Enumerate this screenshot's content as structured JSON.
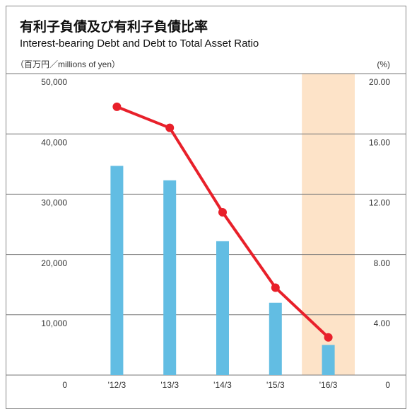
{
  "chart_data": {
    "type": "bar",
    "title": "有利子負債及び有利子負債比率",
    "subtitle": "Interest-bearing Debt and Debt to Total Asset Ratio",
    "y_label": "（百万円／millions of yen）",
    "y2_label": "(%)",
    "categories": [
      "'12/3",
      "'13/3",
      "'14/3",
      "'15/3",
      "'16/3"
    ],
    "series": [
      {
        "name": "有利子負債",
        "type": "bar",
        "axis": "y",
        "color": "#62bde3",
        "values": [
          34700,
          32300,
          22200,
          12000,
          5000
        ]
      },
      {
        "name": "有利子負債比率",
        "type": "line",
        "axis": "y2",
        "color": "#e8202a",
        "values": [
          17.8,
          16.4,
          10.8,
          5.8,
          2.5
        ]
      }
    ],
    "ylim": [
      0,
      50000
    ],
    "yticks": [
      0,
      {
        "value": 10000,
        "label": "10,000"
      },
      {
        "value": 20000,
        "label": "20,000"
      },
      {
        "value": 30000,
        "label": "30,000"
      },
      {
        "value": 40000,
        "label": "40,000"
      },
      {
        "value": 50000,
        "label": "50,000"
      }
    ],
    "y2lim": [
      0,
      20
    ],
    "y2ticks": [
      0,
      {
        "value": 4,
        "label": "4.00"
      },
      {
        "value": 8,
        "label": "8.00"
      },
      {
        "value": 12,
        "label": "12.00"
      },
      {
        "value": 16,
        "label": "16.00"
      },
      {
        "value": 20,
        "label": "20.00"
      }
    ],
    "grid": true
  }
}
